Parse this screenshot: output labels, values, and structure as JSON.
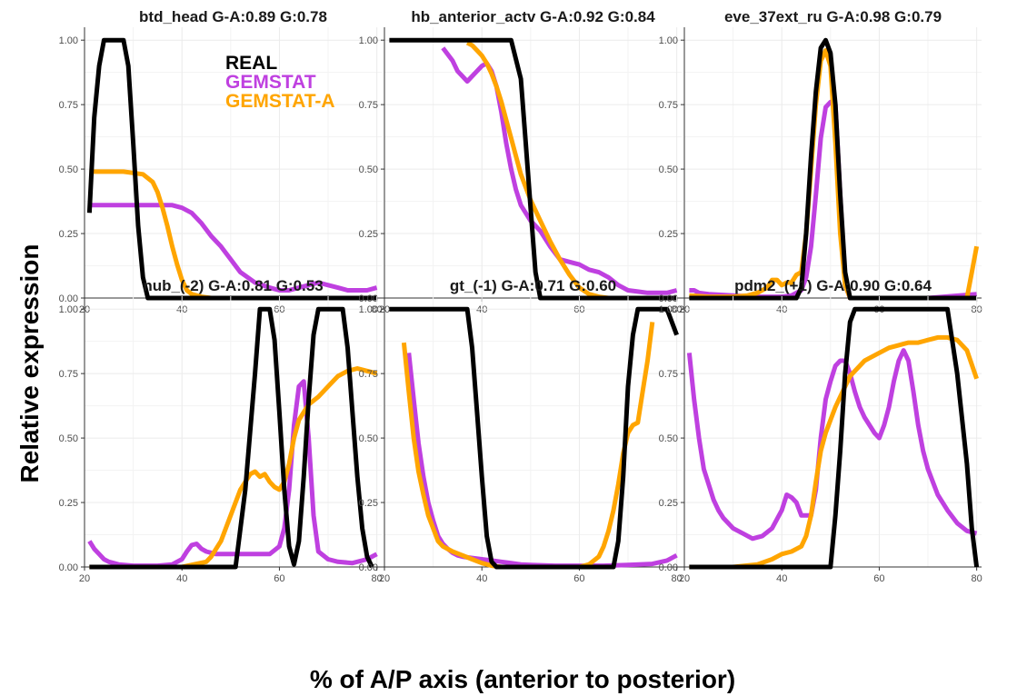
{
  "figure": {
    "xlabel": "% of A/P axis (anterior to posterior)",
    "ylabel": "Relative expression"
  },
  "legend": [
    {
      "label": "REAL",
      "color": "#000000"
    },
    {
      "label": "GEMSTAT",
      "color": "#bf40e0"
    },
    {
      "label": "GEMSTAT-A",
      "color": "#ffa500"
    }
  ],
  "chart_data": [
    {
      "type": "line",
      "title": "btd_head  G-A:0.89  G:0.78",
      "xlim": [
        20,
        81
      ],
      "ylim": [
        0,
        1.05
      ],
      "xticks": [
        "20",
        "40",
        "60",
        "80"
      ],
      "yticks": [
        "0.00",
        "0.25",
        "0.50",
        "0.75",
        "1.00"
      ],
      "series": [
        {
          "name": "REAL",
          "x": [
            21,
            22,
            23,
            24,
            28,
            29,
            30,
            31,
            32,
            33,
            34,
            80
          ],
          "y": [
            0.33,
            0.7,
            0.9,
            1.0,
            1.0,
            0.9,
            0.6,
            0.28,
            0.08,
            0.0,
            0.0,
            0.0
          ]
        },
        {
          "name": "GEMSTAT",
          "x": [
            21,
            30,
            38,
            40,
            42,
            44,
            46,
            48,
            50,
            52,
            55,
            58,
            60,
            62,
            64,
            66,
            68,
            70,
            72,
            74,
            76,
            78,
            80
          ],
          "y": [
            0.36,
            0.36,
            0.36,
            0.35,
            0.33,
            0.29,
            0.24,
            0.2,
            0.15,
            0.1,
            0.06,
            0.04,
            0.03,
            0.03,
            0.04,
            0.05,
            0.06,
            0.05,
            0.04,
            0.03,
            0.03,
            0.03,
            0.04
          ]
        },
        {
          "name": "GEMSTAT-A",
          "x": [
            21,
            28,
            32,
            34,
            35,
            36,
            37,
            38,
            39,
            40,
            41,
            42,
            43,
            44,
            46,
            50,
            60,
            70,
            80
          ],
          "y": [
            0.49,
            0.49,
            0.48,
            0.45,
            0.41,
            0.35,
            0.28,
            0.2,
            0.13,
            0.07,
            0.03,
            0.015,
            0.01,
            0.005,
            0.0,
            0.0,
            0.0,
            0.0,
            0.0
          ]
        }
      ]
    },
    {
      "type": "line",
      "title": "hb_anterior_actv  G-A:0.92  G:0.84",
      "xlim": [
        20,
        81
      ],
      "ylim": [
        0,
        1.05
      ],
      "xticks": [
        "20",
        "40",
        "60",
        "80"
      ],
      "yticks": [
        "0.00",
        "0.25",
        "0.50",
        "0.75",
        "1.00"
      ],
      "series": [
        {
          "name": "REAL",
          "x": [
            21,
            46,
            48,
            49,
            50,
            51,
            52,
            80
          ],
          "y": [
            1.0,
            1.0,
            0.85,
            0.6,
            0.35,
            0.1,
            0.0,
            0.0
          ]
        },
        {
          "name": "GEMSTAT",
          "x": [
            32,
            34,
            35,
            36,
            37,
            38,
            39,
            40,
            41,
            42,
            43,
            44,
            45,
            46,
            47,
            48,
            50,
            52,
            54,
            56,
            58,
            60,
            62,
            64,
            66,
            68,
            70,
            72,
            74,
            76,
            78,
            80
          ],
          "y": [
            0.97,
            0.92,
            0.88,
            0.86,
            0.84,
            0.86,
            0.88,
            0.9,
            0.91,
            0.88,
            0.82,
            0.72,
            0.6,
            0.5,
            0.42,
            0.36,
            0.3,
            0.26,
            0.2,
            0.15,
            0.14,
            0.13,
            0.11,
            0.1,
            0.08,
            0.05,
            0.03,
            0.025,
            0.02,
            0.02,
            0.02,
            0.03
          ]
        },
        {
          "name": "GEMSTAT-A",
          "x": [
            37,
            38,
            39,
            40,
            41,
            42,
            43,
            44,
            45,
            46,
            47,
            48,
            50,
            52,
            54,
            56,
            58,
            60,
            62,
            64,
            66,
            70,
            80
          ],
          "y": [
            0.99,
            0.98,
            0.96,
            0.94,
            0.91,
            0.87,
            0.82,
            0.76,
            0.69,
            0.62,
            0.55,
            0.48,
            0.38,
            0.3,
            0.22,
            0.15,
            0.09,
            0.04,
            0.015,
            0.005,
            0.0,
            0.0,
            0.0
          ]
        }
      ]
    },
    {
      "type": "line",
      "title": "eve_37ext_ru  G-A:0.98  G:0.79",
      "xlim": [
        20,
        81
      ],
      "ylim": [
        0,
        1.05
      ],
      "xticks": [
        "20",
        "40",
        "60",
        "80"
      ],
      "yticks": [
        "0.00",
        "0.25",
        "0.50",
        "0.75",
        "1.00"
      ],
      "series": [
        {
          "name": "REAL",
          "x": [
            21,
            43,
            44,
            45,
            46,
            47,
            48,
            49,
            50,
            51,
            52,
            53,
            54,
            80
          ],
          "y": [
            0.0,
            0.0,
            0.04,
            0.25,
            0.55,
            0.8,
            0.97,
            1.0,
            0.95,
            0.75,
            0.4,
            0.1,
            0.0,
            0.0
          ]
        },
        {
          "name": "GEMSTAT",
          "x": [
            21,
            22,
            23,
            25,
            30,
            35,
            40,
            42,
            44,
            45,
            46,
            47,
            48,
            49,
            50,
            51,
            52,
            53,
            54,
            55,
            60,
            70,
            80
          ],
          "y": [
            0.03,
            0.03,
            0.02,
            0.015,
            0.01,
            0.005,
            0.005,
            0.01,
            0.03,
            0.08,
            0.2,
            0.4,
            0.62,
            0.74,
            0.76,
            0.75,
            0.4,
            0.05,
            0.0,
            0.0,
            0.0,
            0.0,
            0.015
          ]
        },
        {
          "name": "GEMSTAT-A",
          "x": [
            21,
            25,
            30,
            33,
            35,
            37,
            38,
            39,
            40,
            41,
            42,
            43,
            44,
            45,
            46,
            47,
            48,
            49,
            50,
            51,
            52,
            53,
            54,
            60,
            70,
            78,
            79,
            80
          ],
          "y": [
            0.01,
            0.005,
            0.005,
            0.01,
            0.02,
            0.04,
            0.07,
            0.07,
            0.05,
            0.06,
            0.06,
            0.09,
            0.1,
            0.25,
            0.5,
            0.75,
            0.92,
            0.96,
            0.9,
            0.6,
            0.25,
            0.05,
            0.0,
            0.0,
            0.0,
            0.0,
            0.1,
            0.2
          ]
        }
      ]
    },
    {
      "type": "line",
      "title": "nub_(-2)  G-A:0.81  G:0.53",
      "xlim": [
        20,
        81
      ],
      "ylim": [
        0,
        1.05
      ],
      "xticks": [
        "20",
        "40",
        "60",
        "80"
      ],
      "yticks": [
        "0.00",
        "0.25",
        "0.50",
        "0.75",
        "1.00"
      ],
      "series": [
        {
          "name": "REAL",
          "x": [
            21,
            51,
            53,
            55,
            56,
            58,
            59,
            60,
            61,
            62,
            63,
            64,
            65,
            66,
            67,
            68,
            73,
            74,
            75,
            76,
            77,
            78,
            79
          ],
          "y": [
            0.0,
            0.0,
            0.3,
            0.75,
            1.0,
            1.0,
            0.88,
            0.6,
            0.3,
            0.08,
            0.01,
            0.1,
            0.35,
            0.65,
            0.9,
            1.0,
            1.0,
            0.85,
            0.6,
            0.35,
            0.15,
            0.04,
            0.0
          ]
        },
        {
          "name": "GEMSTAT",
          "x": [
            21,
            22,
            23,
            24,
            25,
            27,
            30,
            35,
            38,
            40,
            41,
            42,
            43,
            44,
            45,
            46,
            47,
            48,
            50,
            52,
            55,
            58,
            60,
            61,
            62,
            63,
            64,
            65,
            66,
            67,
            68,
            70,
            72,
            75,
            78,
            80
          ],
          "y": [
            0.1,
            0.07,
            0.05,
            0.03,
            0.02,
            0.01,
            0.005,
            0.005,
            0.01,
            0.03,
            0.06,
            0.085,
            0.09,
            0.07,
            0.06,
            0.055,
            0.05,
            0.05,
            0.05,
            0.05,
            0.05,
            0.05,
            0.08,
            0.15,
            0.3,
            0.55,
            0.7,
            0.72,
            0.5,
            0.2,
            0.06,
            0.03,
            0.02,
            0.015,
            0.03,
            0.05
          ]
        },
        {
          "name": "GEMSTAT-A",
          "x": [
            21,
            40,
            45,
            46,
            48,
            50,
            52,
            54,
            55,
            56,
            57,
            58,
            59,
            60,
            61,
            62,
            63,
            64,
            65,
            66,
            68,
            70,
            72,
            74,
            76,
            78,
            80
          ],
          "y": [
            0.0,
            0.0,
            0.02,
            0.04,
            0.1,
            0.2,
            0.3,
            0.36,
            0.37,
            0.35,
            0.36,
            0.33,
            0.31,
            0.3,
            0.33,
            0.4,
            0.5,
            0.57,
            0.6,
            0.63,
            0.66,
            0.7,
            0.74,
            0.76,
            0.77,
            0.76,
            0.75
          ]
        }
      ]
    },
    {
      "type": "line",
      "title": "gt_(-1)  G-A:0.71  G:0.60",
      "xlim": [
        20,
        81
      ],
      "ylim": [
        0,
        1.05
      ],
      "xticks": [
        "20",
        "40",
        "60",
        "80"
      ],
      "yticks": [
        "0.00",
        "0.25",
        "0.50",
        "0.75",
        "1.00"
      ],
      "series": [
        {
          "name": "REAL",
          "x": [
            21,
            37,
            38,
            39,
            40,
            41,
            42,
            43,
            67,
            68,
            69,
            70,
            71,
            72,
            73,
            78,
            80
          ],
          "y": [
            1.0,
            1.0,
            0.85,
            0.6,
            0.35,
            0.12,
            0.02,
            0.0,
            0.0,
            0.1,
            0.35,
            0.7,
            0.9,
            1.0,
            1.0,
            1.0,
            0.9
          ]
        },
        {
          "name": "GEMSTAT",
          "x": [
            25,
            26,
            27,
            28,
            29,
            30,
            31,
            32,
            33,
            34,
            35,
            36,
            38,
            40,
            42,
            44,
            46,
            48,
            50,
            55,
            60,
            65,
            70,
            75,
            78,
            80
          ],
          "y": [
            0.83,
            0.65,
            0.48,
            0.35,
            0.25,
            0.18,
            0.12,
            0.09,
            0.07,
            0.055,
            0.045,
            0.04,
            0.035,
            0.03,
            0.025,
            0.02,
            0.015,
            0.01,
            0.008,
            0.005,
            0.005,
            0.005,
            0.008,
            0.012,
            0.025,
            0.045
          ]
        },
        {
          "name": "GEMSTAT-A",
          "x": [
            24,
            25,
            26,
            27,
            28,
            29,
            30,
            31,
            32,
            34,
            36,
            38,
            40,
            42,
            44,
            50,
            60,
            62,
            64,
            65,
            66,
            67,
            68,
            69,
            70,
            71,
            72,
            73,
            74,
            75
          ],
          "y": [
            0.87,
            0.68,
            0.5,
            0.37,
            0.28,
            0.2,
            0.15,
            0.1,
            0.08,
            0.06,
            0.045,
            0.03,
            0.015,
            0.005,
            0.0,
            0.0,
            0.0,
            0.01,
            0.04,
            0.08,
            0.14,
            0.22,
            0.32,
            0.44,
            0.52,
            0.55,
            0.56,
            0.68,
            0.8,
            0.95
          ]
        }
      ]
    },
    {
      "type": "line",
      "title": "pdm2_(+1)  G-A:0.90  G:0.64",
      "xlim": [
        20,
        81
      ],
      "ylim": [
        0,
        1.05
      ],
      "xticks": [
        "20",
        "40",
        "60",
        "80"
      ],
      "yticks": [
        "0.00",
        "0.25",
        "0.50",
        "0.75",
        "1.00"
      ],
      "series": [
        {
          "name": "REAL",
          "x": [
            21,
            50,
            51,
            52,
            53,
            54,
            55,
            74,
            76,
            78,
            79,
            80
          ],
          "y": [
            0.0,
            0.0,
            0.2,
            0.45,
            0.75,
            0.95,
            1.0,
            1.0,
            0.75,
            0.4,
            0.15,
            0.0
          ]
        },
        {
          "name": "GEMSTAT",
          "x": [
            21,
            22,
            23,
            24,
            25,
            26,
            27,
            28,
            30,
            32,
            34,
            36,
            38,
            40,
            41,
            42,
            43,
            44,
            45,
            46,
            47,
            48,
            49,
            50,
            51,
            52,
            53,
            54,
            55,
            56,
            57,
            58,
            59,
            60,
            61,
            62,
            63,
            64,
            65,
            66,
            67,
            68,
            69,
            70,
            72,
            74,
            76,
            78,
            80
          ],
          "y": [
            0.83,
            0.65,
            0.5,
            0.38,
            0.32,
            0.26,
            0.22,
            0.19,
            0.15,
            0.13,
            0.11,
            0.12,
            0.15,
            0.22,
            0.28,
            0.27,
            0.25,
            0.2,
            0.2,
            0.2,
            0.3,
            0.5,
            0.65,
            0.72,
            0.78,
            0.8,
            0.8,
            0.75,
            0.68,
            0.62,
            0.58,
            0.55,
            0.52,
            0.5,
            0.55,
            0.62,
            0.72,
            0.8,
            0.84,
            0.8,
            0.68,
            0.55,
            0.45,
            0.38,
            0.28,
            0.22,
            0.17,
            0.14,
            0.13
          ]
        },
        {
          "name": "GEMSTAT-A",
          "x": [
            21,
            30,
            35,
            38,
            40,
            42,
            44,
            45,
            46,
            47,
            48,
            49,
            50,
            51,
            52,
            53,
            54,
            55,
            56,
            57,
            58,
            60,
            62,
            64,
            66,
            68,
            70,
            72,
            74,
            76,
            78,
            80
          ],
          "y": [
            0.0,
            0.0,
            0.01,
            0.03,
            0.05,
            0.06,
            0.08,
            0.12,
            0.2,
            0.33,
            0.45,
            0.52,
            0.57,
            0.62,
            0.66,
            0.7,
            0.74,
            0.76,
            0.78,
            0.8,
            0.81,
            0.83,
            0.85,
            0.86,
            0.87,
            0.87,
            0.88,
            0.89,
            0.89,
            0.88,
            0.84,
            0.73
          ]
        }
      ]
    }
  ]
}
